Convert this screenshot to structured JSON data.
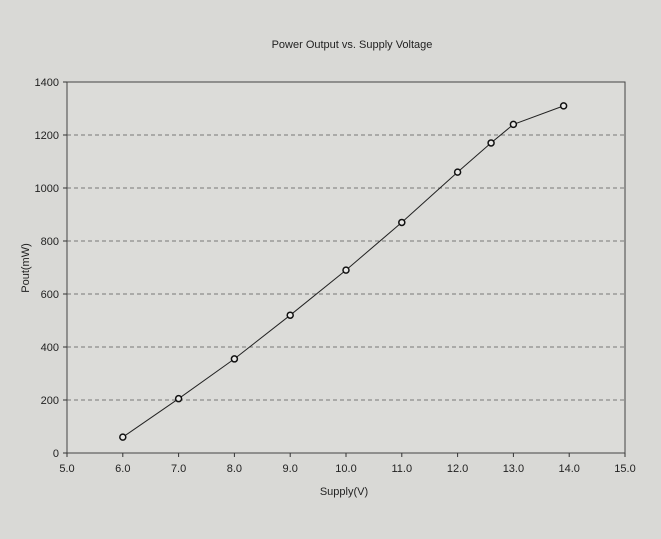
{
  "chart_data": {
    "type": "line",
    "title": "Power Output vs. Supply Voltage",
    "xlabel": "Supply(V)",
    "ylabel": "Pout(mW)",
    "xlim": [
      5.0,
      15.0
    ],
    "ylim": [
      0,
      1400
    ],
    "xticks": [
      "5.0",
      "6.0",
      "7.0",
      "8.0",
      "9.0",
      "10.0",
      "11.0",
      "12.0",
      "13.0",
      "14.0",
      "15.0"
    ],
    "yticks": [
      "0",
      "200",
      "400",
      "600",
      "800",
      "1000",
      "1200",
      "1400"
    ],
    "grid": "horizontal dashed",
    "series": [
      {
        "name": "Pout",
        "x": [
          6.0,
          7.0,
          8.0,
          9.0,
          10.0,
          11.0,
          12.0,
          12.6,
          13.0,
          13.9
        ],
        "y": [
          60,
          205,
          355,
          520,
          690,
          870,
          1060,
          1170,
          1240,
          1310
        ]
      }
    ],
    "colors": {
      "background": "#d9d9d6",
      "line": "#222222",
      "grid": "#555555"
    }
  }
}
